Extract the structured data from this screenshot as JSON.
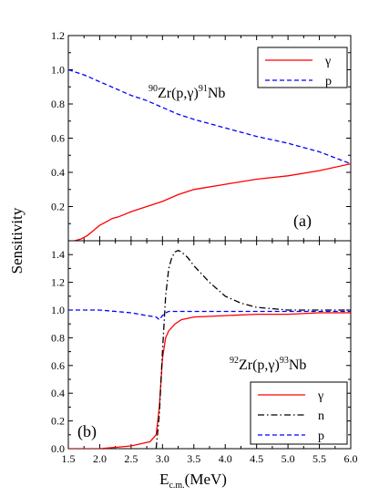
{
  "chart_data": [
    {
      "panel_label": "(a)",
      "type": "line",
      "reaction_label": {
        "mass_target": "90",
        "target": "Zr(p,γ)",
        "mass_product": "91",
        "product": "Nb"
      },
      "xlim": [
        1.5,
        6.0
      ],
      "ylim": [
        0.0,
        1.2
      ],
      "yticks": [
        "0.0",
        "0.2",
        "0.4",
        "0.6",
        "0.8",
        "1.0",
        "1.2"
      ],
      "legend_position": "top-right",
      "series": [
        {
          "name": "γ",
          "color": "#ff0000",
          "dash": "solid",
          "x": [
            1.6,
            1.7,
            1.8,
            1.9,
            2.0,
            2.1,
            2.2,
            2.3,
            2.5,
            2.75,
            3.0,
            3.25,
            3.5,
            4.0,
            4.5,
            5.0,
            5.5,
            6.0
          ],
          "y": [
            0.0,
            0.01,
            0.03,
            0.06,
            0.09,
            0.11,
            0.13,
            0.14,
            0.17,
            0.2,
            0.23,
            0.27,
            0.3,
            0.33,
            0.36,
            0.38,
            0.41,
            0.45
          ]
        },
        {
          "name": "p",
          "color": "#0000ff",
          "dash": "dashed",
          "x": [
            1.5,
            1.75,
            2.0,
            2.25,
            2.5,
            2.75,
            3.0,
            3.25,
            3.5,
            4.0,
            4.5,
            5.0,
            5.5,
            6.0
          ],
          "y": [
            1.0,
            0.97,
            0.93,
            0.89,
            0.85,
            0.82,
            0.78,
            0.74,
            0.71,
            0.66,
            0.61,
            0.57,
            0.52,
            0.45
          ]
        }
      ]
    },
    {
      "panel_label": "(b)",
      "type": "line",
      "reaction_label": {
        "mass_target": "92",
        "target": "Zr(p,γ)",
        "mass_product": "93",
        "product": "Nb"
      },
      "xlim": [
        1.5,
        6.0
      ],
      "ylim": [
        0.0,
        1.5
      ],
      "yticks": [
        "0.0",
        "0.2",
        "0.4",
        "0.6",
        "0.8",
        "1.0",
        "1.2",
        "1.4"
      ],
      "legend_position": "bottom-right",
      "series": [
        {
          "name": "γ",
          "color": "#ff0000",
          "dash": "solid",
          "x": [
            1.5,
            2.0,
            2.5,
            2.8,
            2.9,
            2.95,
            3.0,
            3.05,
            3.1,
            3.2,
            3.3,
            3.5,
            4.0,
            4.5,
            5.0,
            5.5,
            6.0
          ],
          "y": [
            0.0,
            0.0,
            0.02,
            0.05,
            0.1,
            0.3,
            0.65,
            0.8,
            0.85,
            0.9,
            0.93,
            0.95,
            0.96,
            0.97,
            0.97,
            0.98,
            0.98
          ]
        },
        {
          "name": "n",
          "color": "#000000",
          "dash": "dashdot",
          "x": [
            2.9,
            2.95,
            3.0,
            3.05,
            3.1,
            3.15,
            3.2,
            3.25,
            3.3,
            3.4,
            3.5,
            3.75,
            4.0,
            4.25,
            4.5,
            4.75,
            5.0,
            5.5,
            6.0
          ],
          "y": [
            0.0,
            0.25,
            0.7,
            1.1,
            1.3,
            1.38,
            1.42,
            1.43,
            1.42,
            1.38,
            1.32,
            1.2,
            1.1,
            1.05,
            1.02,
            1.01,
            1.0,
            1.0,
            1.0
          ]
        },
        {
          "name": "p",
          "color": "#0000ff",
          "dash": "dashed",
          "x": [
            1.5,
            1.75,
            2.0,
            2.25,
            2.5,
            2.75,
            2.9,
            2.95,
            3.0,
            3.05,
            3.1,
            3.25,
            3.5,
            4.0,
            4.5,
            5.0,
            5.5,
            6.0
          ],
          "y": [
            1.0,
            1.0,
            1.0,
            0.99,
            0.98,
            0.96,
            0.95,
            0.93,
            0.96,
            0.98,
            0.99,
            0.99,
            0.99,
            0.99,
            0.99,
            0.99,
            0.99,
            0.99
          ]
        }
      ]
    }
  ],
  "axes": {
    "ylabel": "Sensitivity",
    "xlabel_main": "E",
    "xlabel_sub": "c.m.",
    "xlabel_unit": "(MeV)",
    "xticks": [
      "1.5",
      "2.0",
      "2.5",
      "3.0",
      "3.5",
      "4.0",
      "4.5",
      "5.0",
      "5.5",
      "6.0"
    ]
  }
}
